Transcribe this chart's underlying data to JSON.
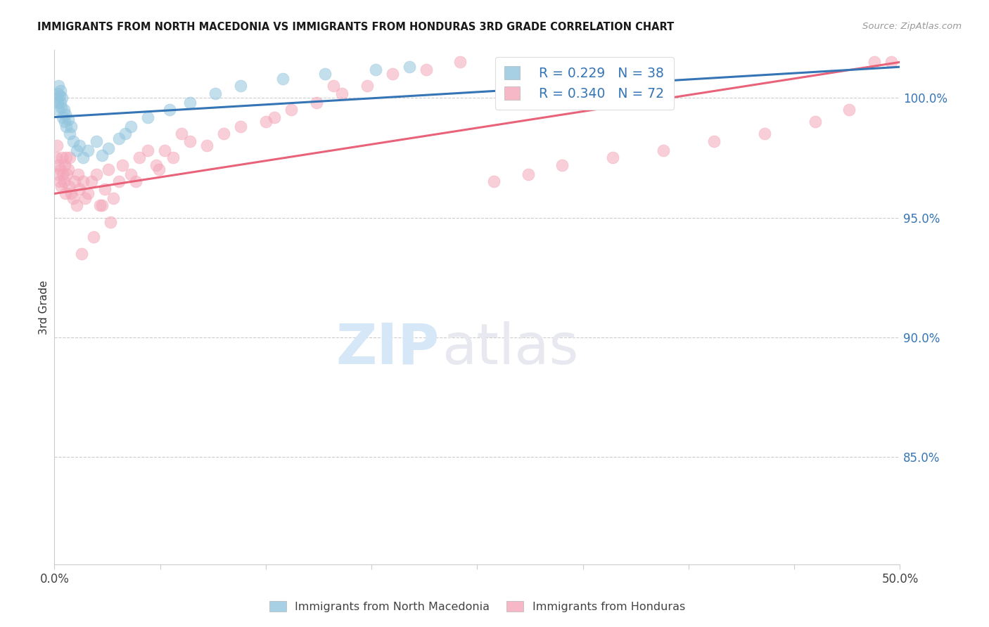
{
  "title": "IMMIGRANTS FROM NORTH MACEDONIA VS IMMIGRANTS FROM HONDURAS 3RD GRADE CORRELATION CHART",
  "source": "Source: ZipAtlas.com",
  "ylabel": "3rd Grade",
  "xlim": [
    0.0,
    50.0
  ],
  "ylim": [
    80.5,
    102.0
  ],
  "color_blue": "#92c5de",
  "color_pink": "#f4a6b8",
  "line_blue": "#3575b5",
  "line_pink": "#e8637a",
  "text_blue": "#3575b5",
  "watermark_zip_color": "#d6e8f7",
  "watermark_atlas_color": "#e8e8f0",
  "nm_line_x0": 0.0,
  "nm_line_x1": 50.0,
  "nm_line_y0": 99.2,
  "nm_line_y1": 101.3,
  "hon_line_x0": 0.0,
  "hon_line_x1": 50.0,
  "hon_line_y0": 96.0,
  "hon_line_y1": 101.5,
  "nm_x": [
    0.15,
    0.18,
    0.2,
    0.22,
    0.25,
    0.3,
    0.35,
    0.38,
    0.4,
    0.45,
    0.5,
    0.55,
    0.6,
    0.65,
    0.7,
    0.8,
    0.9,
    1.0,
    1.1,
    1.3,
    1.5,
    1.7,
    2.0,
    2.5,
    2.8,
    3.2,
    3.8,
    4.5,
    5.5,
    6.8,
    8.0,
    9.5,
    11.0,
    13.5,
    16.0,
    19.0,
    21.0,
    4.2
  ],
  "nm_y": [
    100.0,
    99.8,
    100.2,
    100.5,
    99.5,
    100.1,
    99.8,
    100.3,
    99.6,
    100.0,
    99.2,
    99.5,
    99.0,
    99.3,
    98.8,
    99.1,
    98.5,
    98.8,
    98.2,
    97.8,
    98.0,
    97.5,
    97.8,
    98.2,
    97.6,
    97.9,
    98.3,
    98.8,
    99.2,
    99.5,
    99.8,
    100.2,
    100.5,
    100.8,
    101.0,
    101.2,
    101.3,
    98.5
  ],
  "hon_x": [
    0.1,
    0.15,
    0.2,
    0.25,
    0.3,
    0.35,
    0.4,
    0.45,
    0.5,
    0.55,
    0.6,
    0.65,
    0.7,
    0.75,
    0.8,
    0.85,
    0.9,
    1.0,
    1.1,
    1.2,
    1.3,
    1.4,
    1.5,
    1.7,
    1.8,
    2.0,
    2.2,
    2.5,
    2.8,
    3.0,
    3.2,
    3.5,
    3.8,
    4.0,
    4.5,
    5.0,
    5.5,
    6.0,
    6.5,
    7.0,
    8.0,
    9.0,
    10.0,
    11.0,
    12.5,
    14.0,
    15.5,
    17.0,
    18.5,
    20.0,
    22.0,
    24.0,
    26.0,
    28.0,
    30.0,
    33.0,
    36.0,
    39.0,
    42.0,
    45.0,
    47.0,
    48.5,
    49.5,
    3.3,
    2.3,
    1.6,
    7.5,
    13.0,
    16.5,
    4.8,
    6.2,
    2.7
  ],
  "hon_y": [
    97.5,
    98.0,
    96.8,
    97.2,
    96.5,
    97.0,
    96.3,
    97.5,
    96.8,
    96.5,
    97.2,
    96.0,
    97.5,
    96.8,
    97.0,
    96.3,
    97.5,
    96.0,
    95.8,
    96.5,
    95.5,
    96.8,
    96.2,
    96.5,
    95.8,
    96.0,
    96.5,
    96.8,
    95.5,
    96.2,
    97.0,
    95.8,
    96.5,
    97.2,
    96.8,
    97.5,
    97.8,
    97.2,
    97.8,
    97.5,
    98.2,
    98.0,
    98.5,
    98.8,
    99.0,
    99.5,
    99.8,
    100.2,
    100.5,
    101.0,
    101.2,
    101.5,
    96.5,
    96.8,
    97.2,
    97.5,
    97.8,
    98.2,
    98.5,
    99.0,
    99.5,
    101.5,
    101.5,
    94.8,
    94.2,
    93.5,
    98.5,
    99.2,
    100.5,
    96.5,
    97.0,
    95.5
  ]
}
